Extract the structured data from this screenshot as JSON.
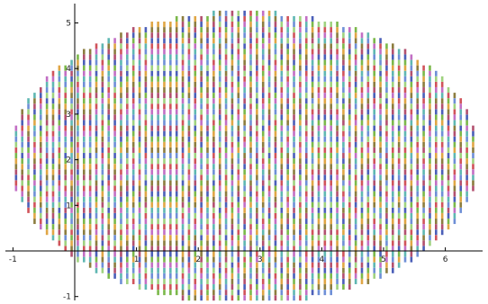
{
  "chart_data": {
    "type": "scatter",
    "title": "",
    "xlabel": "",
    "ylabel": "",
    "xlim": [
      -1,
      6.6
    ],
    "ylim": [
      -1.2,
      5.4
    ],
    "x_ticks": [
      -1,
      1,
      2,
      3,
      4,
      5,
      6
    ],
    "y_ticks": [
      -1,
      1,
      2,
      3,
      4,
      5
    ],
    "x_tick_labels": [
      "-1",
      "1",
      "2",
      "3",
      "4",
      "5",
      "6"
    ],
    "y_tick_labels": [
      "-1",
      "1",
      "2",
      "3",
      "4",
      "5"
    ],
    "region": {
      "shape": "ellipse",
      "center": [
        2.75,
        2.05
      ],
      "semi_axis_x": 3.8,
      "semi_axis_y": 3.2
    },
    "grid": {
      "x_step": 0.1,
      "y_step": 0.12
    },
    "marker": "short vertical multicolor dash",
    "colors": [
      "#4b5fb8",
      "#d0535a",
      "#7bb84a",
      "#c26fc4",
      "#e0a645",
      "#5fb7b2",
      "#8c7d3f",
      "#6e8fd6",
      "#b2506f",
      "#9fd27f"
    ],
    "grid_lines": false,
    "legend": "none"
  }
}
